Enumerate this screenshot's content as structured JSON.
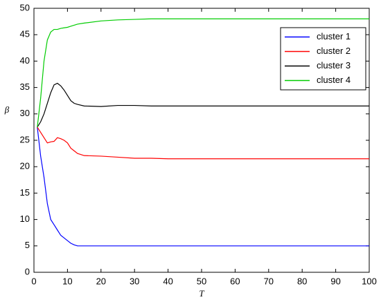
{
  "chart_data": {
    "type": "line",
    "x_label": "T",
    "y_label": "β",
    "x": [
      1,
      2,
      3,
      4,
      5,
      6,
      7,
      8,
      9,
      10,
      11,
      12,
      13,
      15,
      20,
      25,
      30,
      35,
      40,
      50,
      60,
      70,
      80,
      90,
      100
    ],
    "series": [
      {
        "name": "cluster 1",
        "color": "#0000ff",
        "values": [
          27.5,
          22,
          18,
          13,
          10,
          9,
          8,
          7,
          6.5,
          6,
          5.5,
          5.2,
          5,
          5,
          5,
          5,
          5,
          5,
          5,
          5,
          5,
          5,
          5,
          5,
          5
        ]
      },
      {
        "name": "cluster 2",
        "color": "#ff0000",
        "values": [
          27.5,
          26.5,
          25.5,
          24.5,
          24.7,
          24.8,
          25.5,
          25.3,
          25,
          24.5,
          23.5,
          23,
          22.5,
          22.1,
          22,
          21.8,
          21.6,
          21.6,
          21.5,
          21.5,
          21.5,
          21.5,
          21.5,
          21.5,
          21.5
        ]
      },
      {
        "name": "cluster 3",
        "color": "#000000",
        "values": [
          27.5,
          28.5,
          30,
          32,
          34,
          35.5,
          35.8,
          35.3,
          34.5,
          33.5,
          32.5,
          32,
          31.8,
          31.5,
          31.4,
          31.6,
          31.6,
          31.5,
          31.5,
          31.5,
          31.5,
          31.5,
          31.5,
          31.5,
          31.5
        ]
      },
      {
        "name": "cluster 4",
        "color": "#00cc00",
        "values": [
          27.5,
          33,
          40,
          44,
          45.5,
          46,
          46,
          46.2,
          46.3,
          46.4,
          46.6,
          46.8,
          47,
          47.2,
          47.6,
          47.8,
          47.9,
          48,
          48,
          48,
          48,
          48,
          48,
          48,
          48
        ]
      }
    ],
    "xlim": [
      0,
      100
    ],
    "xticks": [
      0,
      10,
      20,
      30,
      40,
      50,
      60,
      70,
      80,
      90,
      100
    ],
    "ylim": [
      0,
      50
    ],
    "yticks": [
      0,
      5,
      10,
      15,
      20,
      25,
      30,
      35,
      40,
      45,
      50
    ],
    "legend": "northeast"
  }
}
